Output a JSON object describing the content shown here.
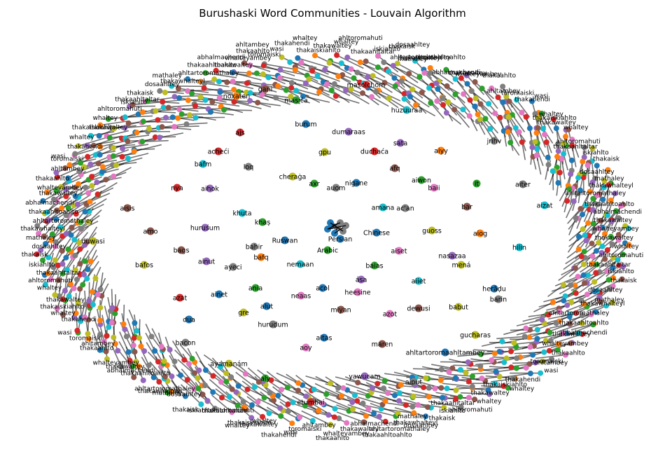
{
  "title": "Burushaski Word Communities - Louvain Algorithm",
  "palette": [
    "#1f77b4",
    "#ff7f0e",
    "#2ca02c",
    "#d62728",
    "#9467bd",
    "#8c564b",
    "#e377c2",
    "#7f7f7f",
    "#bcbd22",
    "#17becf"
  ],
  "interior_nodes": [
    {
      "label": "masolchom",
      "c": 3
    },
    {
      "label": "gani",
      "c": 5
    },
    {
      "label": "masića",
      "c": 2
    },
    {
      "label": "noxaten",
      "c": 1
    },
    {
      "label": "huzuuraa",
      "c": 9
    },
    {
      "label": "burum",
      "c": 0
    },
    {
      "label": "dumaraas",
      "c": 4
    },
    {
      "label": "ajs",
      "c": 3
    },
    {
      "label": "sata",
      "c": 4
    },
    {
      "label": "jrihv",
      "c": 7
    },
    {
      "label": "acheći",
      "c": 3
    },
    {
      "label": "gpu",
      "c": 8
    },
    {
      "label": "duchaća",
      "c": 3
    },
    {
      "label": "aiyy",
      "c": 1
    },
    {
      "label": "bafm",
      "c": 9
    },
    {
      "label": "loq",
      "c": 7
    },
    {
      "label": "afq",
      "c": 5
    },
    {
      "label": "cheraġa",
      "c": 8
    },
    {
      "label": "axr",
      "c": 2
    },
    {
      "label": "nigane",
      "c": 0
    },
    {
      "label": "aiwon",
      "c": 2
    },
    {
      "label": "nya",
      "c": 3
    },
    {
      "label": "aihok",
      "c": 4
    },
    {
      "label": "auom",
      "c": 7
    },
    {
      "label": "baii",
      "c": 6
    },
    {
      "label": "it",
      "c": 2
    },
    {
      "label": "aiter",
      "c": 7
    },
    {
      "label": "aisis",
      "c": 5
    },
    {
      "label": "amana",
      "c": 9
    },
    {
      "label": "ac'an",
      "c": 7
    },
    {
      "label": "bar",
      "c": 5
    },
    {
      "label": "aizat",
      "c": 9
    },
    {
      "label": "khuta",
      "c": 9
    },
    {
      "label": "khaṣ",
      "c": 2
    },
    {
      "label": "amo",
      "c": 5
    },
    {
      "label": "huruśum",
      "c": 4
    },
    {
      "label": "Chinese",
      "c": 0
    },
    {
      "label": "guoss",
      "c": 8
    },
    {
      "label": "aiog",
      "c": 1
    },
    {
      "label": "Ruśwan",
      "c": 0
    },
    {
      "label": "duwasi",
      "c": 8
    },
    {
      "label": "bags",
      "c": 5
    },
    {
      "label": "bahir",
      "c": 7
    },
    {
      "label": "bafq",
      "c": 1
    },
    {
      "label": "Arabic",
      "c": 2
    },
    {
      "label": "Persian",
      "c": 0
    },
    {
      "label": "aiset",
      "c": 6
    },
    {
      "label": "nasazaa",
      "c": 4
    },
    {
      "label": "hilin",
      "c": 9
    },
    {
      "label": "bafos",
      "c": 8
    },
    {
      "label": "ainut",
      "c": 4
    },
    {
      "label": "ayeci",
      "c": 7
    },
    {
      "label": "nemaan",
      "c": 9
    },
    {
      "label": "baias",
      "c": 2
    },
    {
      "label": "mená",
      "c": 8
    },
    {
      "label": "ása",
      "c": 4
    },
    {
      "label": "aiiet",
      "c": 9
    },
    {
      "label": "ania",
      "c": 2
    },
    {
      "label": "acol",
      "c": 0
    },
    {
      "label": "heesine",
      "c": 6
    },
    {
      "label": "herāḍu",
      "c": 0
    },
    {
      "label": "azat",
      "c": 3
    },
    {
      "label": "ainet",
      "c": 0
    },
    {
      "label": "neaas",
      "c": 6
    },
    {
      "label": "dewusi",
      "c": 5
    },
    {
      "label": "babut",
      "c": 8
    },
    {
      "label": "barin",
      "c": 7
    },
    {
      "label": "gre",
      "c": 8
    },
    {
      "label": "alut",
      "c": 0
    },
    {
      "label": "miyan",
      "c": 5
    },
    {
      "label": "azot",
      "c": 6
    },
    {
      "label": "dua",
      "c": 0
    },
    {
      "label": "huruḍum",
      "c": 7
    },
    {
      "label": "aitas",
      "c": 0
    },
    {
      "label": "gucharas",
      "c": 8
    },
    {
      "label": "bacon",
      "c": 7
    },
    {
      "label": "aoy",
      "c": 6
    },
    {
      "label": "maren",
      "c": 5
    },
    {
      "label": "ahltartoromaahltambey",
      "c": 0
    },
    {
      "label": "ayamanám",
      "c": 8
    },
    {
      "label": "yawucam",
      "c": 4
    },
    {
      "label": "aly",
      "c": 2
    },
    {
      "label": "aiput",
      "c": 7
    },
    {
      "label": "etumbai",
      "c": 3
    }
  ],
  "ring_words": [
    "thakawaltey",
    "whaltey",
    "ahltoromahuti",
    "thakaahltaltar",
    "iskiahlto",
    "thakaisk",
    "dosaahltey",
    "mathaley",
    "thakawhalteyl",
    "ahltartoromathaley",
    "thakaahltoahlto",
    "abhalmachendi",
    "thakawaltey",
    "whalteyambey",
    "thakaahlto",
    "ahltambey",
    "toromaiski",
    "wasi",
    "thakahendi",
    "whaltey",
    "thakaiskiahlto"
  ]
}
